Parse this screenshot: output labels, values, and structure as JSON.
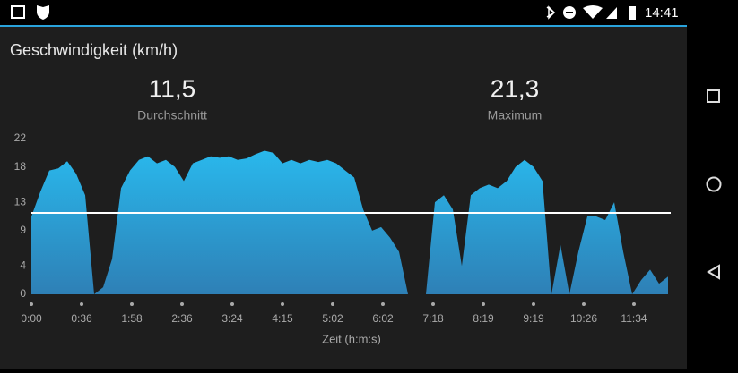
{
  "status_bar": {
    "time": "14:41"
  },
  "header": {
    "title": "Geschwindigkeit (km/h)"
  },
  "stats": [
    {
      "value": "11,5",
      "label": "Durchschnitt"
    },
    {
      "value": "21,3",
      "label": "Maximum"
    }
  ],
  "chart_data": {
    "type": "area",
    "x_label": "Zeit (h:m:s)",
    "x_tick_labels": [
      "0:00",
      "0:36",
      "1:58",
      "2:36",
      "3:24",
      "4:15",
      "5:02",
      "6:02",
      "7:18",
      "8:19",
      "9:19",
      "10:26",
      "11:34"
    ],
    "values": [
      11,
      14.5,
      17.5,
      17.8,
      18.8,
      17,
      14,
      0,
      1,
      5,
      15,
      17.5,
      19,
      19.5,
      18.5,
      19,
      18,
      16,
      18.5,
      19,
      19.5,
      19.3,
      19.5,
      19,
      19.2,
      19.8,
      20.3,
      20,
      18.5,
      19,
      18.5,
      19,
      18.7,
      19,
      18.5,
      17.5,
      16.5,
      12,
      9,
      9.5,
      8,
      6,
      0,
      0,
      0,
      13,
      14,
      12,
      4,
      14,
      15,
      15.5,
      15,
      16,
      18,
      19,
      18,
      16,
      0,
      7,
      0,
      6,
      11,
      11,
      10.5,
      13,
      6,
      0,
      2,
      3.5,
      1.5,
      2.5
    ],
    "ylim": [
      0,
      22
    ],
    "yticks": [
      0,
      4,
      9,
      13,
      18,
      22
    ],
    "average": {
      "value": 11.5,
      "label": "11,5"
    },
    "colors": {
      "top": "#29b8ec",
      "bottom": "#2e80b6",
      "average_line": "#ffffff"
    }
  }
}
